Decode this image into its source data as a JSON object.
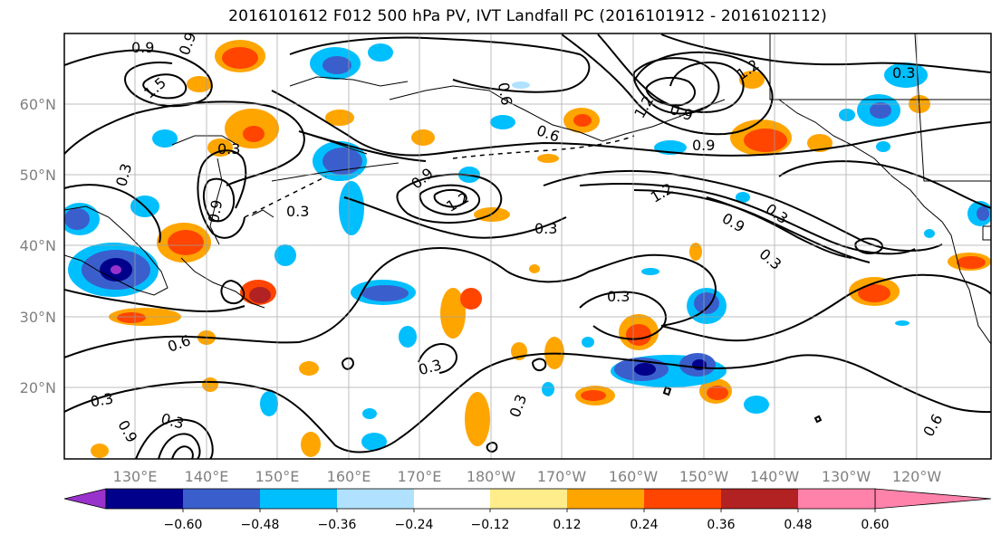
{
  "title": "2016101612 F012 500 hPa PV, IVT Landfall PC (2016101912 - 2016102112)",
  "axes": {
    "lat_labels": [
      "20°N",
      "30°N",
      "40°N",
      "50°N",
      "60°N"
    ],
    "lon_labels": [
      "130°E",
      "140°E",
      "150°E",
      "160°E",
      "170°E",
      "180°W",
      "170°W",
      "160°W",
      "150°W",
      "140°W",
      "130°W",
      "120°W"
    ]
  },
  "colorbar": {
    "tick_labels": [
      "−0.60",
      "−0.48",
      "−0.36",
      "−0.24",
      "−0.12",
      "0.12",
      "0.24",
      "0.36",
      "0.48",
      "0.60"
    ],
    "colors": [
      "#9932cc",
      "#00008b",
      "#3a5fcd",
      "#00bfff",
      "#b0e2ff",
      "#ffffff",
      "#ffec8b",
      "#ffa500",
      "#ff4500",
      "#b22222",
      "#ff82ab"
    ]
  },
  "contour_labels": [
    "0.9",
    "0.9",
    "1.5",
    "0.3",
    "0.3",
    "0.9",
    "0.3",
    "0.6",
    "0.9",
    "1.2",
    "1.2",
    "0.9",
    "1.2",
    "0.6",
    "1.2",
    "0.9",
    "0.3",
    "0.9",
    "0.3",
    "0.3",
    "0.3",
    "0.6",
    "0.3",
    "0.3",
    "0.9",
    "0.3",
    "0.3",
    "0.6",
    "0.3"
  ]
}
